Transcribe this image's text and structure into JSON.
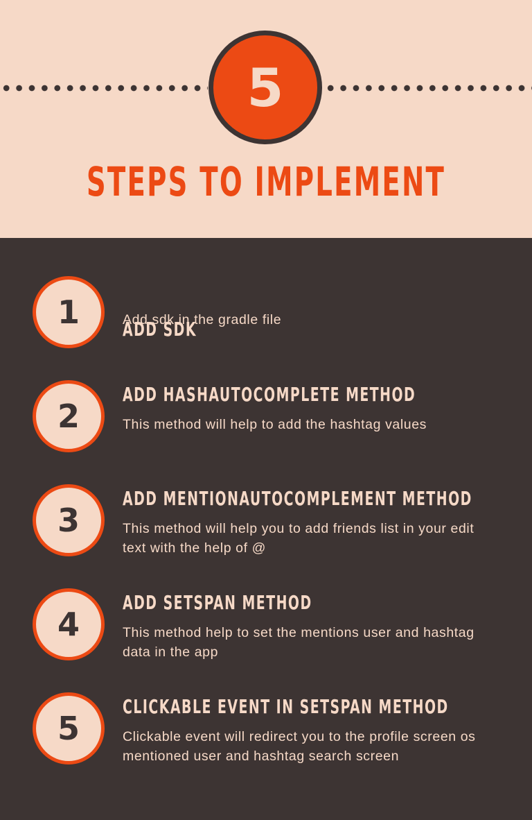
{
  "header": {
    "badge_number": "5",
    "title": "STEPS TO IMPLEMENT"
  },
  "steps": [
    {
      "number": "1",
      "heading": "ADD SDK",
      "description": "Add sdk in the gradle file"
    },
    {
      "number": "2",
      "heading": "ADD HASHAUTOCOMPLETE METHOD",
      "description": "This method will help to add the hashtag values"
    },
    {
      "number": "3",
      "heading": "ADD MENTIONAUTOCOMPLEMENT METHOD",
      "description": "This method will help you to add friends list in your edit text with the help of @"
    },
    {
      "number": "4",
      "heading": "ADD SETSPAN METHOD",
      "description": "This method help to set the mentions user and hashtag data in the app"
    },
    {
      "number": "5",
      "heading": "CLICKABLE EVENT IN SETSPAN METHOD",
      "description": "Clickable event will redirect you to the profile screen os mentioned user and hashtag search screen"
    }
  ],
  "colors": {
    "accent": "#ec4a14",
    "background_light": "#f6d9c7",
    "background_dark": "#3d3433"
  }
}
